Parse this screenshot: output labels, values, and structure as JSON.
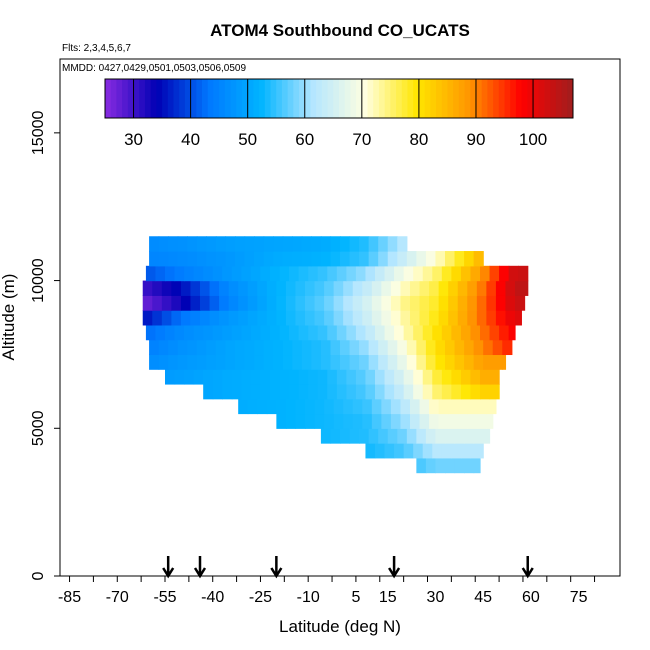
{
  "chart_data": {
    "type": "heatmap",
    "title": "ATOM4 Southbound CO_UCATS",
    "flights_label": "Flts: 2,3,4,5,6,7",
    "dates_label": "MMDD: 0427,0429,0501,0503,0506,0509",
    "xlabel": "Latitude (deg N)",
    "ylabel": "Altitude (m)",
    "xlim": [
      -88,
      88
    ],
    "ylim": [
      0,
      17500
    ],
    "x_ticks": [
      -85,
      -70,
      -55,
      -40,
      -25,
      -10,
      5,
      15,
      30,
      45,
      60,
      75
    ],
    "x_tick_labels": [
      "-85",
      "-70",
      "-55",
      "-40",
      "-25",
      "-10",
      "5",
      "15",
      "30",
      "45",
      "60",
      "75"
    ],
    "y_ticks": [
      0,
      5000,
      10000,
      15000
    ],
    "y_tick_labels": [
      "0",
      "5000",
      "10000",
      "15000"
    ],
    "colorbar": {
      "min": 25,
      "max": 107,
      "ticks": [
        30,
        40,
        50,
        60,
        70,
        80,
        90,
        100
      ],
      "tick_labels": [
        "30",
        "40",
        "50",
        "60",
        "70",
        "80",
        "90",
        "100"
      ],
      "colors": [
        "#8a2be2",
        "#0000b4",
        "#0078ff",
        "#00b4ff",
        "#b4e6ff",
        "#ffffe0",
        "#ffe600",
        "#ff9600",
        "#ff0000",
        "#a01e1e"
      ]
    },
    "arrows_latitude": [
      -54,
      -44,
      -20,
      17,
      59
    ],
    "grid": false,
    "field": {
      "altitude_bins_m": [
        3500,
        4000,
        4500,
        5000,
        5500,
        6000,
        6500,
        7000,
        7500,
        8000,
        8500,
        9000,
        9500,
        10000,
        10500,
        11000
      ],
      "latitude_extent_deg": [
        [
          24,
          44
        ],
        [
          8,
          45
        ],
        [
          -6,
          47
        ],
        [
          -20,
          48
        ],
        [
          -32,
          49
        ],
        [
          -43,
          50
        ],
        [
          -55,
          50
        ],
        [
          -60,
          52
        ],
        [
          -60,
          54
        ],
        [
          -61,
          55
        ],
        [
          -62,
          57
        ],
        [
          -62,
          58
        ],
        [
          -62,
          59
        ],
        [
          -61,
          59
        ],
        [
          -60,
          45
        ],
        [
          -60,
          21
        ]
      ],
      "profiles": [
        {
          "lat": -62,
          "co": [
            null,
            null,
            null,
            null,
            null,
            null,
            48,
            46,
            44,
            42,
            35,
            27,
            30,
            40,
            45,
            46
          ]
        },
        {
          "lat": -50,
          "co": [
            null,
            null,
            null,
            null,
            null,
            49,
            49,
            48,
            47,
            46,
            43,
            33,
            35,
            44,
            46,
            47
          ]
        },
        {
          "lat": -35,
          "co": [
            null,
            null,
            null,
            null,
            51,
            51,
            51,
            50,
            50,
            49,
            48,
            45,
            46,
            48,
            48,
            49
          ]
        },
        {
          "lat": -20,
          "co": [
            null,
            null,
            null,
            52,
            52,
            52,
            52,
            52,
            52,
            52,
            52,
            52,
            52,
            52,
            51,
            50
          ]
        },
        {
          "lat": -5,
          "co": [
            null,
            null,
            53,
            53,
            53,
            53,
            53,
            54,
            54,
            55,
            56,
            57,
            56,
            55,
            52,
            51
          ]
        },
        {
          "lat": 8,
          "co": [
            null,
            53,
            54,
            54,
            55,
            56,
            57,
            58,
            60,
            62,
            64,
            65,
            63,
            60,
            55,
            54
          ]
        },
        {
          "lat": 20,
          "co": [
            54,
            56,
            58,
            60,
            62,
            64,
            66,
            68,
            70,
            72,
            73,
            74,
            72,
            69,
            64,
            62
          ]
        },
        {
          "lat": 30,
          "co": [
            58,
            62,
            66,
            69,
            72,
            75,
            77,
            79,
            80,
            80,
            79,
            78,
            77,
            75,
            71,
            null
          ]
        },
        {
          "lat": 45,
          "co": [
            null,
            null,
            null,
            null,
            null,
            82,
            86,
            88,
            90,
            91,
            92,
            92,
            91,
            89,
            86,
            null
          ]
        },
        {
          "lat": 55,
          "co": [
            null,
            null,
            null,
            null,
            null,
            null,
            null,
            null,
            97,
            99,
            101,
            103,
            104,
            103,
            null,
            null
          ]
        }
      ]
    }
  }
}
